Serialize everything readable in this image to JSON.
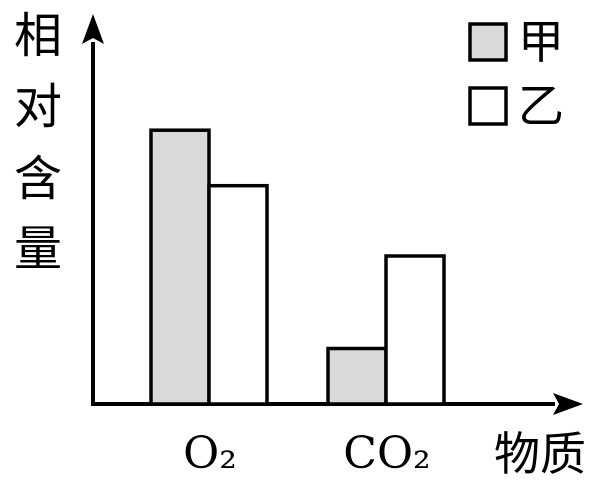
{
  "chart_data": {
    "type": "bar",
    "title": "",
    "ylabel": "相对含量",
    "xlabel": "物质",
    "categories": [
      "O₂",
      "CO₂"
    ],
    "series": [
      {
        "name": "甲",
        "values": [
          7.4,
          1.5
        ],
        "color": "#d9d9d9"
      },
      {
        "name": "乙",
        "values": [
          5.9,
          4.0
        ],
        "color": "#ffffff"
      }
    ],
    "ylim": [
      0,
      10
    ],
    "grid": false,
    "legend_position": "top-right"
  }
}
